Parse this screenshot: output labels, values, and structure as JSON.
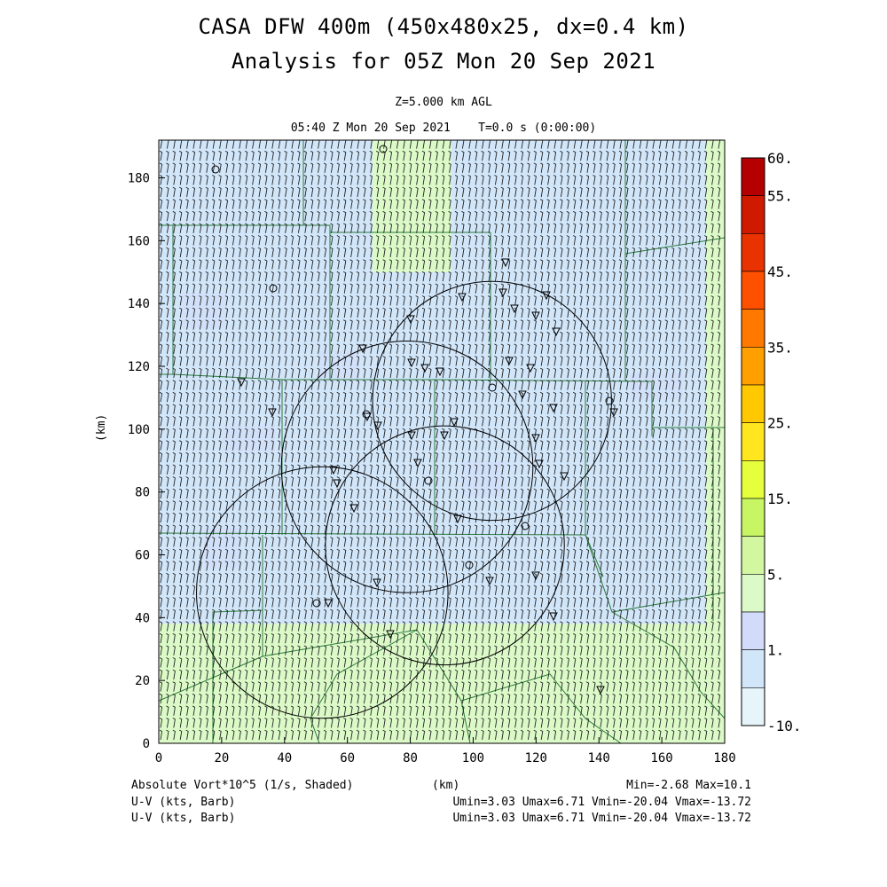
{
  "header": {
    "title_line1": "CASA DFW 400m (450x480x25, dx=0.4 km)",
    "title_line2": "Analysis for 05Z Mon 20 Sep 2021",
    "level": "Z=5.000 km AGL",
    "valid_time": "05:40 Z Mon 20 Sep 2021    T=0.0 s (0:00:00)"
  },
  "axes": {
    "x_label": "(km)",
    "y_label": "(km)",
    "x_range": [
      0,
      180
    ],
    "y_range": [
      0,
      192
    ],
    "x_ticks": [
      "0",
      "20",
      "40",
      "60",
      "80",
      "100",
      "120",
      "140",
      "160",
      "180"
    ],
    "y_ticks": [
      "0",
      "20",
      "40",
      "60",
      "80",
      "100",
      "120",
      "140",
      "160",
      "180"
    ]
  },
  "colorbar": {
    "labels": [
      "60.",
      "55.",
      "45.",
      "35.",
      "25.",
      "15.",
      "5.",
      "1.",
      "-10."
    ],
    "colors": [
      "#b40000",
      "#d01a00",
      "#e83200",
      "#ff5000",
      "#ff7800",
      "#ff9f00",
      "#ffc800",
      "#ffe61e",
      "#e6ff3c",
      "#c8f564",
      "#d2f7a0",
      "#dcfac8",
      "#d2dcfa",
      "#d2e6fa",
      "#e6f5fa"
    ]
  },
  "footer": {
    "field_label": "Absolute Vort*10^5 (1/s, Shaded)",
    "field_stats": "Min=-2.68 Max=10.1",
    "wind1_label": "U-V (kts, Barb)",
    "wind1_stats": "Umin=3.03 Umax=6.71 Vmin=-20.04 Vmax=-13.72",
    "wind2_label": "U-V (kts, Barb)",
    "wind2_stats": "Umin=3.03 Umax=6.71 Vmin=-20.04 Vmax=-13.72"
  },
  "chart_data": {
    "type": "map",
    "field": "absolute vorticity x 10^5 (1/s)",
    "field_min": -2.68,
    "field_max": 10.1,
    "wind": {
      "u_range": [
        3.03,
        6.71
      ],
      "v_range": [
        -20.04,
        -13.72
      ],
      "units": "kts"
    },
    "radar_rings_km": [
      {
        "center": [
          106,
          109
        ],
        "radius": 38
      },
      {
        "center": [
          79,
          88
        ],
        "radius": 40
      },
      {
        "center": [
          91,
          63
        ],
        "radius": 38
      },
      {
        "center": [
          52,
          48
        ],
        "radius": 40
      }
    ],
    "shading_regions": [
      {
        "value_class": "3-5",
        "bounds_km": {
          "x": [
            0,
            180
          ],
          "y": [
            0,
            38
          ]
        }
      },
      {
        "value_class": "3-5",
        "bounds_km": {
          "x": [
            68,
            93
          ],
          "y": [
            150,
            192
          ]
        }
      },
      {
        "value_class": "3-5",
        "bounds_km": {
          "x": [
            174,
            180
          ],
          "y": [
            38,
            192
          ]
        }
      },
      {
        "value_class": "1-3",
        "bounds_km": {
          "x": [
            0,
            180
          ],
          "y": [
            38,
            192
          ]
        }
      }
    ]
  }
}
